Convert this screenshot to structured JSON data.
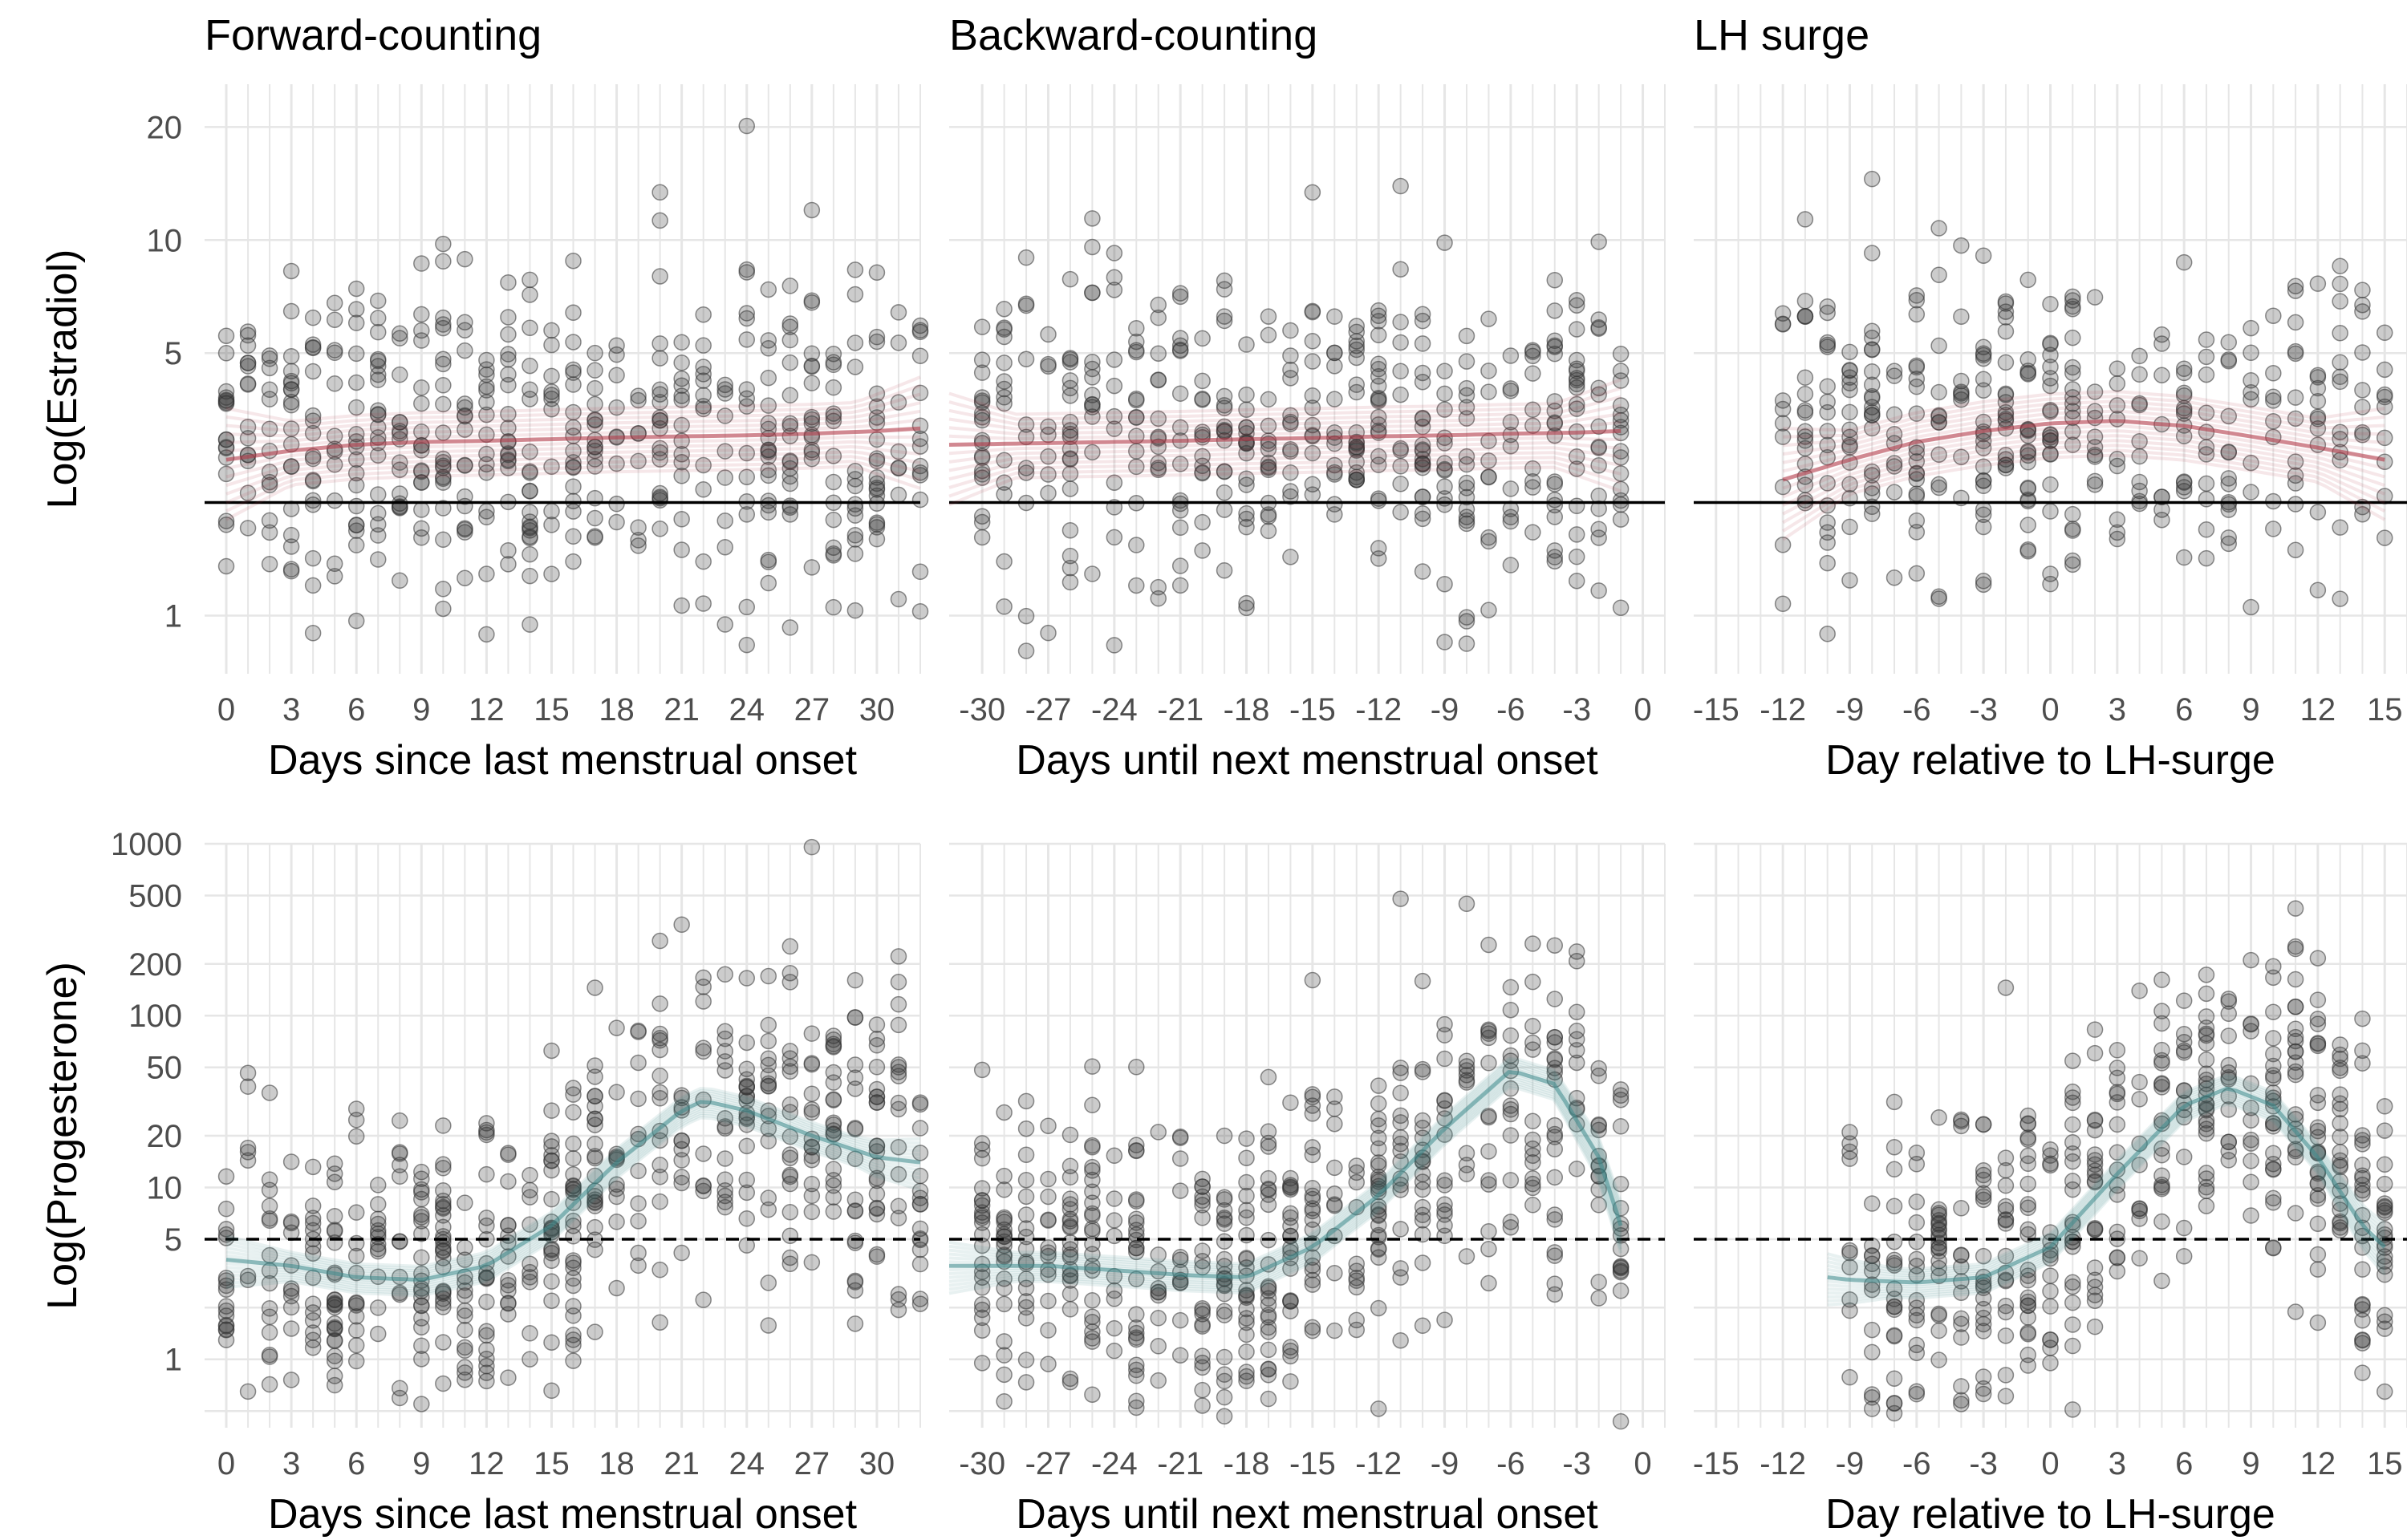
{
  "figure": {
    "colors": {
      "estradiol_fit": "#b23a48",
      "progesterone_fit": "#3e8a8c",
      "points": "#333333",
      "grid": "#e6e6e6"
    }
  },
  "chart_data": [
    {
      "type": "scatter",
      "title": "Forward-counting",
      "xlabel": "Days since last menstrual onset",
      "ylabel": "Log(Estradiol)",
      "xlim": [
        -1,
        32
      ],
      "ylim_log": [
        0.7,
        26
      ],
      "scale": "log",
      "xticks": [
        0,
        3,
        6,
        9,
        12,
        15,
        18,
        21,
        24,
        27,
        30
      ],
      "xtick_labels": [
        "0",
        "3",
        "6",
        "9",
        "12",
        "15",
        "18",
        "21",
        "24",
        "27",
        "30"
      ],
      "yticks": [
        1,
        5,
        10,
        20
      ],
      "ytick_labels": [
        "1",
        "5",
        "10",
        "20"
      ],
      "ref_line": {
        "y": 2,
        "style": "solid"
      },
      "fit": {
        "color": "#b23a48",
        "x": [
          0,
          3,
          6,
          9,
          12,
          15,
          18,
          21,
          24,
          27,
          30,
          32
        ],
        "y": [
          2.6,
          2.75,
          2.85,
          2.9,
          2.92,
          2.95,
          2.98,
          3.0,
          3.02,
          3.05,
          3.1,
          3.15
        ]
      },
      "points_summary": {
        "x_range": [
          0,
          32
        ],
        "center": 3.0,
        "spread": 0.5
      }
    },
    {
      "type": "scatter",
      "title": "Backward-counting",
      "xlabel": "Days until next menstrual onset",
      "ylabel": "",
      "xlim": [
        -31.5,
        1
      ],
      "ylim_log": [
        0.7,
        26
      ],
      "scale": "log",
      "xticks": [
        -30,
        -27,
        -24,
        -21,
        -18,
        -15,
        -12,
        -9,
        -6,
        -3,
        0
      ],
      "xtick_labels": [
        "-30",
        "-27",
        "-24",
        "-21",
        "-18",
        "-15",
        "-12",
        "-9",
        "-6",
        "-3",
        "0"
      ],
      "yticks": [
        1,
        5,
        10,
        20
      ],
      "ytick_labels": [
        "",
        "",
        "",
        ""
      ],
      "ref_line": {
        "y": 2,
        "style": "solid"
      },
      "fit": {
        "color": "#b23a48",
        "x": [
          -31.5,
          -27,
          -24,
          -21,
          -18,
          -15,
          -12,
          -9,
          -6,
          -3,
          -1
        ],
        "y": [
          2.85,
          2.88,
          2.9,
          2.92,
          2.95,
          2.97,
          3.0,
          3.02,
          3.05,
          3.07,
          3.1
        ]
      },
      "points_summary": {
        "x_range": [
          -30,
          -1
        ],
        "center": 3.0,
        "spread": 0.5
      }
    },
    {
      "type": "scatter",
      "title": "LH surge",
      "xlabel": "Day relative to LH-surge",
      "ylabel": "",
      "xlim": [
        -16,
        16
      ],
      "ylim_log": [
        0.7,
        26
      ],
      "scale": "log",
      "xticks": [
        -15,
        -12,
        -9,
        -6,
        -3,
        0,
        3,
        6,
        9,
        12,
        15
      ],
      "xtick_labels": [
        "-15",
        "-12",
        "-9",
        "-6",
        "-3",
        "0",
        "3",
        "6",
        "9",
        "12",
        "15"
      ],
      "yticks": [
        1,
        5,
        10,
        20
      ],
      "ytick_labels": [
        "",
        "",
        "",
        ""
      ],
      "ref_line": {
        "y": 2,
        "style": "solid"
      },
      "fit": {
        "color": "#b23a48",
        "x": [
          -12,
          -9,
          -6,
          -3,
          0,
          3,
          6,
          9,
          12,
          15
        ],
        "y": [
          2.3,
          2.6,
          2.9,
          3.1,
          3.25,
          3.3,
          3.2,
          3.0,
          2.8,
          2.6
        ]
      },
      "points_summary": {
        "x_range": [
          -12,
          15
        ],
        "center": 3.0,
        "spread": 0.5
      }
    },
    {
      "type": "scatter",
      "title": "",
      "xlabel": "Days since last menstrual onset",
      "ylabel": "Log(Progesterone)",
      "xlim": [
        -1,
        32
      ],
      "ylim_log": [
        0.4,
        1000
      ],
      "scale": "log",
      "xticks": [
        0,
        3,
        6,
        9,
        12,
        15,
        18,
        21,
        24,
        27,
        30
      ],
      "xtick_labels": [
        "0",
        "3",
        "6",
        "9",
        "12",
        "15",
        "18",
        "21",
        "24",
        "27",
        "30"
      ],
      "yticks": [
        1,
        5,
        10,
        20,
        50,
        100,
        200,
        500,
        1000
      ],
      "ytick_labels": [
        "1",
        "5",
        "10",
        "20",
        "50",
        "100",
        "200",
        "500",
        "1000"
      ],
      "ref_line": {
        "y": 5,
        "style": "dashed"
      },
      "fit": {
        "color": "#3e8a8c",
        "x": [
          0,
          3,
          6,
          9,
          12,
          15,
          18,
          21,
          22,
          24,
          27,
          30,
          32
        ],
        "y": [
          3.8,
          3.5,
          3.0,
          2.9,
          3.5,
          6,
          14,
          28,
          32,
          28,
          20,
          15,
          14
        ]
      },
      "points_summary": {
        "x_range": [
          0,
          32
        ],
        "spread": 1.1
      }
    },
    {
      "type": "scatter",
      "title": "",
      "xlabel": "Days until next menstrual onset",
      "ylabel": "",
      "xlim": [
        -31.5,
        1
      ],
      "ylim_log": [
        0.4,
        1000
      ],
      "scale": "log",
      "xticks": [
        -30,
        -27,
        -24,
        -21,
        -18,
        -15,
        -12,
        -9,
        -6,
        -3,
        0
      ],
      "xtick_labels": [
        "-30",
        "-27",
        "-24",
        "-21",
        "-18",
        "-15",
        "-12",
        "-9",
        "-6",
        "-3",
        "0"
      ],
      "yticks": [
        1,
        5,
        10,
        20,
        50,
        100,
        200,
        500,
        1000
      ],
      "ytick_labels": [
        "",
        "",
        "",
        "",
        "",
        "",
        "",
        "",
        ""
      ],
      "ref_line": {
        "y": 5,
        "style": "dashed"
      },
      "fit": {
        "color": "#3e8a8c",
        "x": [
          -31.5,
          -27,
          -24,
          -21,
          -18,
          -15,
          -12,
          -9,
          -6,
          -4,
          -2,
          -1
        ],
        "y": [
          3.5,
          3.5,
          3.3,
          3.1,
          3.0,
          4.5,
          9,
          22,
          48,
          40,
          15,
          6
        ]
      },
      "points_summary": {
        "x_range": [
          -30,
          -1
        ],
        "spread": 1.1
      }
    },
    {
      "type": "scatter",
      "title": "",
      "xlabel": "Day relative to LH-surge",
      "ylabel": "",
      "xlim": [
        -16,
        16
      ],
      "ylim_log": [
        0.4,
        1000
      ],
      "scale": "log",
      "xticks": [
        -15,
        -12,
        -9,
        -6,
        -3,
        0,
        3,
        6,
        9,
        12,
        15
      ],
      "xtick_labels": [
        "-15",
        "-12",
        "-9",
        "-6",
        "-3",
        "0",
        "3",
        "6",
        "9",
        "12",
        "15"
      ],
      "yticks": [
        1,
        5,
        10,
        20,
        50,
        100,
        200,
        500,
        1000
      ],
      "ytick_labels": [
        "",
        "",
        "",
        "",
        "",
        "",
        "",
        "",
        ""
      ],
      "ref_line": {
        "y": 5,
        "style": "dashed"
      },
      "fit": {
        "color": "#3e8a8c",
        "x": [
          -10,
          -9,
          -6,
          -3,
          0,
          3,
          6,
          8,
          10,
          12,
          14,
          15
        ],
        "y": [
          3.0,
          2.9,
          2.8,
          3.0,
          4.5,
          12,
          30,
          38,
          30,
          15,
          6,
          4.5
        ]
      },
      "points_summary": {
        "x_range": [
          -9,
          15
        ],
        "spread": 1.1
      }
    }
  ]
}
